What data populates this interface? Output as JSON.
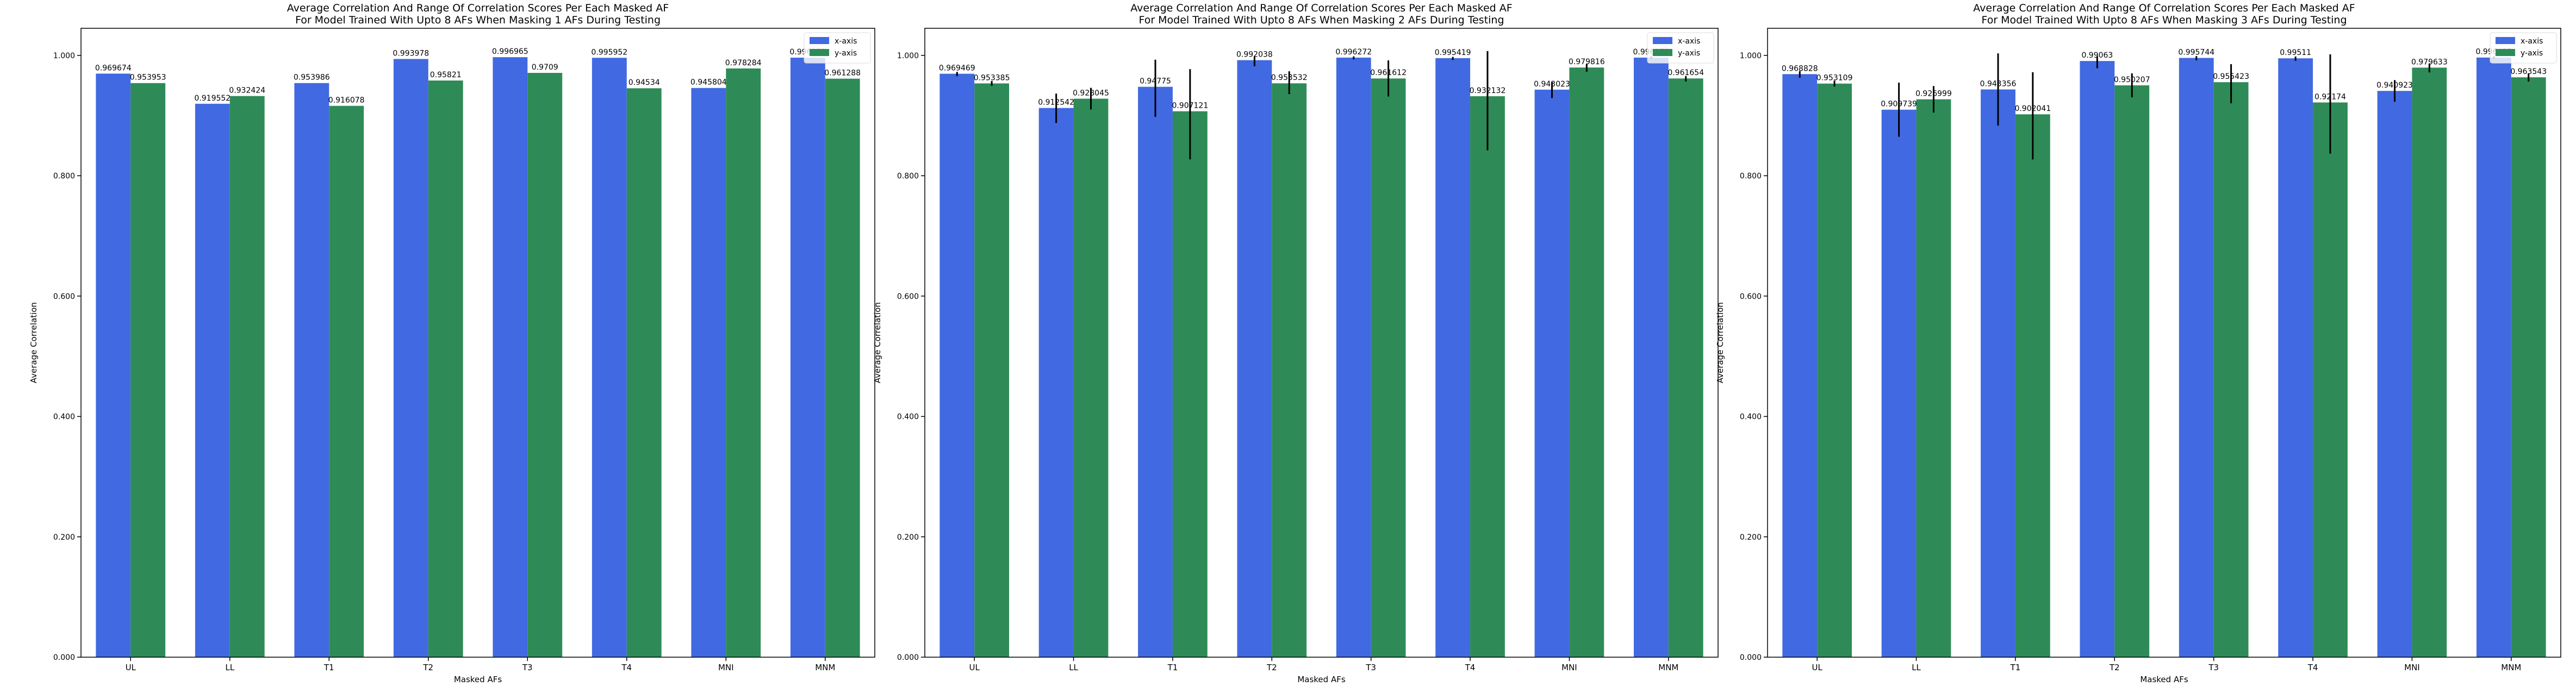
{
  "chart_data": [
    {
      "type": "bar",
      "title": "Average Correlation And Range Of Correlation Scores Per Each Masked AF",
      "subtitle": "For Model Trained With Upto 8 AFs When Masking 1 AFs During Testing",
      "xlabel": "Masked AFs",
      "ylabel": "Average Correlation",
      "ylim": [
        0,
        1.045
      ],
      "yticks": [
        "0.000",
        "0.200",
        "0.400",
        "0.600",
        "0.800",
        "1.000"
      ],
      "grid": false,
      "legend_position": "top-right",
      "categories": [
        "UL",
        "LL",
        "T1",
        "T2",
        "T3",
        "T4",
        "MNI",
        "MNM"
      ],
      "series": [
        {
          "name": "x-axis",
          "color": "#4169e1",
          "values": [
            0.969674,
            0.919552,
            0.953986,
            0.993978,
            0.996965,
            0.995952,
            0.945804,
            0.996179
          ],
          "labels": [
            "0.969674",
            "0.919552",
            "0.953986",
            "0.993978",
            "0.996965",
            "0.995952",
            "0.945804",
            "0.996179"
          ],
          "err_low": [
            0,
            0,
            0,
            0,
            0,
            0,
            0,
            0
          ],
          "err_high": [
            0,
            0,
            0,
            0,
            0,
            0,
            0,
            0
          ]
        },
        {
          "name": "y-axis",
          "color": "#2e8b57",
          "values": [
            0.953953,
            0.932424,
            0.916078,
            0.95821,
            0.9709,
            0.94534,
            0.978284,
            0.961288
          ],
          "labels": [
            "0.953953",
            "0.932424",
            "0.916078",
            "0.95821",
            "0.9709",
            "0.94534",
            "0.978284",
            "0.961288"
          ],
          "err_low": [
            0,
            0,
            0,
            0,
            0,
            0,
            0,
            0
          ],
          "err_high": [
            0,
            0,
            0,
            0,
            0,
            0,
            0,
            0
          ]
        }
      ]
    },
    {
      "type": "bar",
      "title": "Average Correlation And Range Of Correlation Scores Per Each Masked AF",
      "subtitle": "For Model Trained With Upto 8 AFs When Masking 2 AFs During Testing",
      "xlabel": "Masked AFs",
      "ylabel": "Average Correlation",
      "ylim": [
        0,
        1.045
      ],
      "yticks": [
        "0.000",
        "0.200",
        "0.400",
        "0.600",
        "0.800",
        "1.000"
      ],
      "grid": false,
      "legend_position": "top-right",
      "categories": [
        "UL",
        "LL",
        "T1",
        "T2",
        "T3",
        "T4",
        "MNI",
        "MNM"
      ],
      "series": [
        {
          "name": "x-axis",
          "color": "#4169e1",
          "values": [
            0.969469,
            0.912542,
            0.94775,
            0.992038,
            0.996272,
            0.995419,
            0.943023,
            0.996273
          ],
          "labels": [
            "0.969469",
            "0.912542",
            "0.94775",
            "0.992038",
            "0.996272",
            "0.995419",
            "0.943023",
            "0.996273"
          ],
          "err_low": [
            0.004,
            0.025,
            0.05,
            0.01,
            0.003,
            0.003,
            0.014,
            0.002
          ],
          "err_high": [
            0.003,
            0.024,
            0.045,
            0.006,
            0.002,
            0.002,
            0.013,
            0.002
          ]
        },
        {
          "name": "y-axis",
          "color": "#2e8b57",
          "values": [
            0.953385,
            0.928045,
            0.907121,
            0.953532,
            0.961612,
            0.932132,
            0.979816,
            0.961654
          ],
          "labels": [
            "0.953385",
            "0.928045",
            "0.907121",
            "0.953532",
            "0.961612",
            "0.932132",
            "0.979816",
            "0.961654"
          ],
          "err_low": [
            0.004,
            0.018,
            0.08,
            0.018,
            0.03,
            0.09,
            0.007,
            0.005
          ],
          "err_high": [
            0.004,
            0.018,
            0.07,
            0.02,
            0.03,
            0.075,
            0.006,
            0.004
          ]
        }
      ]
    },
    {
      "type": "bar",
      "title": "Average Correlation And Range Of Correlation Scores Per Each Masked AF",
      "subtitle": "For Model Trained With Upto 8 AFs When Masking 3 AFs During Testing",
      "xlabel": "Masked AFs",
      "ylabel": "Average Correlation",
      "ylim": [
        0,
        1.045
      ],
      "yticks": [
        "0.000",
        "0.200",
        "0.400",
        "0.600",
        "0.800",
        "1.000"
      ],
      "grid": false,
      "legend_position": "top-right",
      "categories": [
        "UL",
        "LL",
        "T1",
        "T2",
        "T3",
        "T4",
        "MNI",
        "MNM"
      ],
      "series": [
        {
          "name": "x-axis",
          "color": "#4169e1",
          "values": [
            0.968828,
            0.909739,
            0.943356,
            0.99063,
            0.995744,
            0.99511,
            0.940923,
            0.996412
          ],
          "labels": [
            "0.968828",
            "0.909739",
            "0.943356",
            "0.99063",
            "0.995744",
            "0.99511",
            "0.940923",
            "0.996412"
          ],
          "err_low": [
            0.006,
            0.045,
            0.06,
            0.012,
            0.004,
            0.004,
            0.018,
            0.002
          ],
          "err_high": [
            0.005,
            0.045,
            0.06,
            0.008,
            0.003,
            0.003,
            0.018,
            0.002
          ]
        },
        {
          "name": "y-axis",
          "color": "#2e8b57",
          "values": [
            0.953109,
            0.926999,
            0.902041,
            0.950207,
            0.955423,
            0.92174,
            0.979633,
            0.963543
          ],
          "labels": [
            "0.953109",
            "0.926999",
            "0.902041",
            "0.950207",
            "0.955423",
            "0.92174",
            "0.979633",
            "0.963543"
          ],
          "err_low": [
            0.005,
            0.022,
            0.075,
            0.02,
            0.035,
            0.085,
            0.008,
            0.007
          ],
          "err_high": [
            0.005,
            0.022,
            0.07,
            0.02,
            0.03,
            0.08,
            0.007,
            0.006
          ]
        }
      ]
    }
  ]
}
